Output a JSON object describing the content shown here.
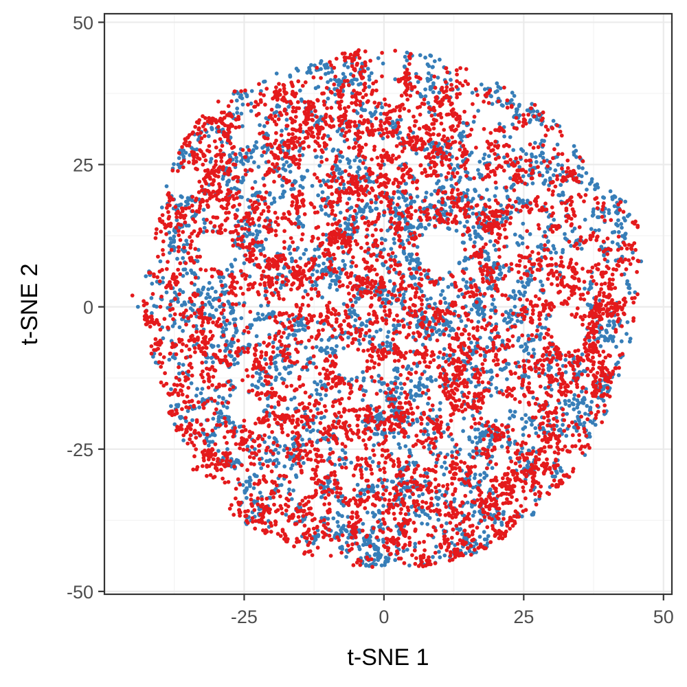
{
  "chart_data": {
    "type": "scatter",
    "title": "",
    "xlabel": "t-SNE 1",
    "ylabel": "t-SNE 2",
    "xlim": [
      -50,
      51.5
    ],
    "ylim": [
      -50.5,
      51.5
    ],
    "x_ticks": [
      -25,
      0,
      25,
      50
    ],
    "x_tick_labels": [
      "-25",
      "0",
      "25",
      "50"
    ],
    "y_ticks": [
      -50,
      -25,
      0,
      25,
      50
    ],
    "y_tick_labels": [
      "-50",
      "-25",
      "0",
      "25",
      "50"
    ],
    "grid": true,
    "legend": "none",
    "theme": "bw",
    "series": [
      {
        "color": "#E41A1C",
        "approx_point_count": 6000,
        "points_sample": [
          [
            -45,
            2
          ],
          [
            -42,
            6
          ],
          [
            -40,
            -4
          ],
          [
            -38,
            10
          ],
          [
            -36,
            16
          ],
          [
            -35,
            -2
          ],
          [
            -33,
            22
          ],
          [
            -30,
            28
          ],
          [
            -28,
            -10
          ],
          [
            -26,
            33
          ],
          [
            -25,
            -20
          ],
          [
            -22,
            36
          ],
          [
            -20,
            5
          ],
          [
            -18,
            39
          ],
          [
            -15,
            -14
          ],
          [
            -12,
            42
          ],
          [
            -10,
            -30
          ],
          [
            -8,
            20
          ],
          [
            -5,
            -38
          ],
          [
            -2,
            38
          ],
          [
            0,
            -42
          ],
          [
            2,
            45
          ],
          [
            5,
            12
          ],
          [
            8,
            -44
          ],
          [
            10,
            36
          ],
          [
            12,
            -20
          ],
          [
            15,
            30
          ],
          [
            18,
            0
          ],
          [
            20,
            26
          ],
          [
            22,
            -38
          ],
          [
            24,
            24
          ],
          [
            26,
            8
          ],
          [
            28,
            -14
          ],
          [
            30,
            16
          ],
          [
            32,
            -18
          ],
          [
            35,
            14
          ],
          [
            38,
            4
          ],
          [
            40,
            12
          ],
          [
            42,
            8
          ],
          [
            45,
            10
          ],
          [
            -30,
            -18
          ],
          [
            -20,
            -22
          ],
          [
            5,
            -30
          ],
          [
            15,
            -40
          ],
          [
            20,
            -30
          ],
          [
            -40,
            0
          ],
          [
            30,
            4
          ],
          [
            -10,
            10
          ],
          [
            10,
            -8
          ]
        ]
      },
      {
        "color": "#377EB8",
        "approx_point_count": 4000,
        "points_sample": [
          [
            -44,
            0
          ],
          [
            -40,
            8
          ],
          [
            -38,
            -6
          ],
          [
            -35,
            -12
          ],
          [
            -33,
            30
          ],
          [
            -30,
            20
          ],
          [
            -28,
            -25
          ],
          [
            -26,
            15
          ],
          [
            -24,
            -30
          ],
          [
            -20,
            28
          ],
          [
            -17,
            36
          ],
          [
            -15,
            38
          ],
          [
            -13,
            -20
          ],
          [
            -10,
            30
          ],
          [
            -8,
            -12
          ],
          [
            -5,
            15
          ],
          [
            -3,
            -32
          ],
          [
            -1,
            -28
          ],
          [
            0,
            25
          ],
          [
            2,
            40
          ],
          [
            4,
            20
          ],
          [
            6,
            -10
          ],
          [
            8,
            5
          ],
          [
            10,
            -44
          ],
          [
            12,
            25
          ],
          [
            14,
            -35
          ],
          [
            16,
            14
          ],
          [
            18,
            -42
          ],
          [
            20,
            10
          ],
          [
            22,
            -32
          ],
          [
            25,
            2
          ],
          [
            28,
            -25
          ],
          [
            30,
            6
          ],
          [
            32,
            10
          ],
          [
            35,
            -10
          ],
          [
            38,
            -14
          ],
          [
            40,
            8
          ],
          [
            42,
            -12
          ],
          [
            46,
            8
          ],
          [
            -5,
            -4
          ],
          [
            20,
            -20
          ]
        ]
      }
    ]
  }
}
